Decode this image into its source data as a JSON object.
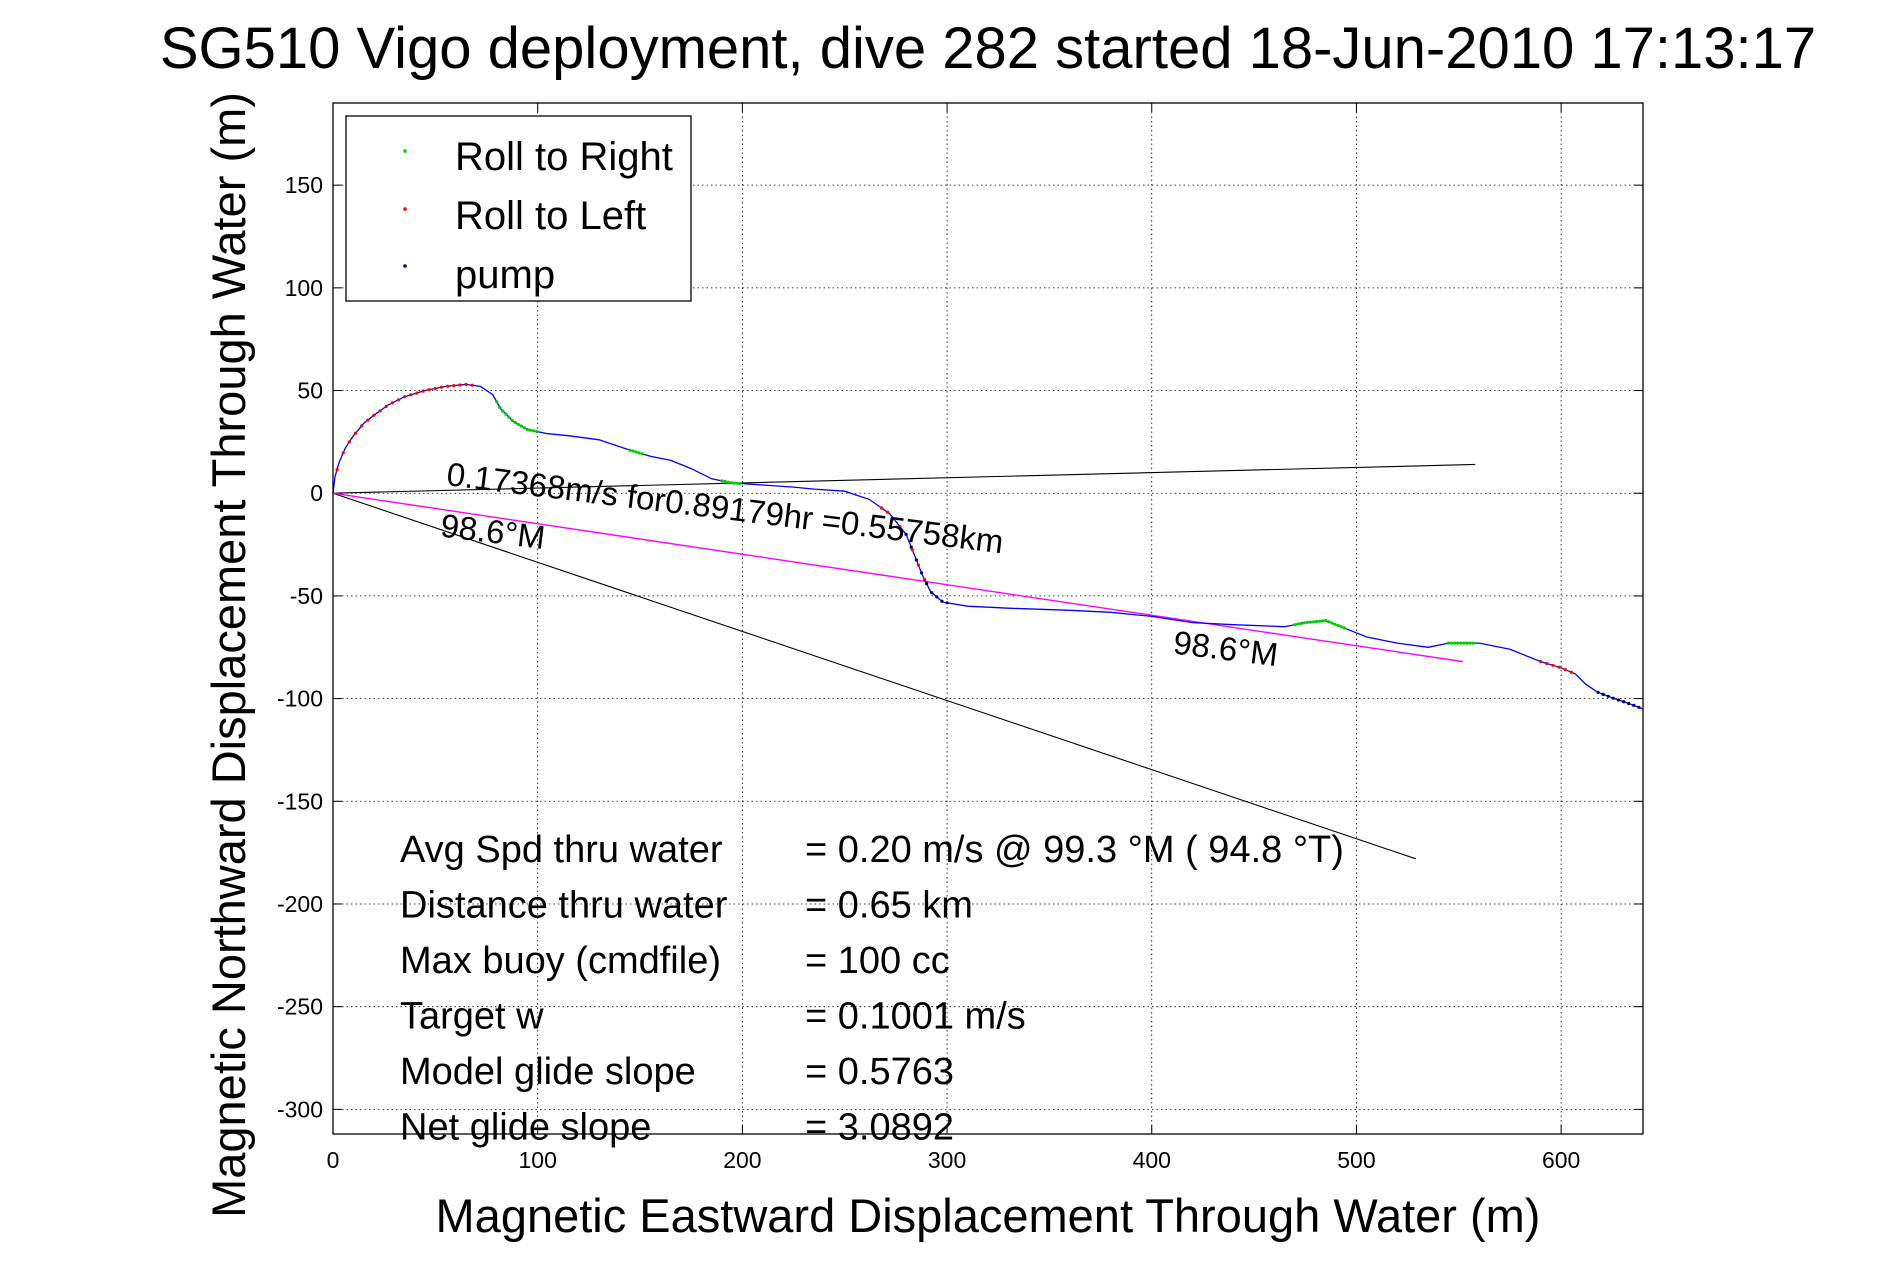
{
  "chart_data": {
    "type": "scatter",
    "title": "SG510 Vigo deployment, dive 282 started 18-Jun-2010 17:13:17",
    "xlabel": "Magnetic Eastward Displacement Through Water (m)",
    "ylabel": "Magnetic Northward Displacement Through Water (m)",
    "xlim": [
      0,
      640
    ],
    "ylim": [
      -312,
      190
    ],
    "x_ticks": [
      0,
      100,
      200,
      300,
      400,
      500,
      600
    ],
    "y_ticks": [
      -300,
      -250,
      -200,
      -150,
      -100,
      -50,
      0,
      50,
      100,
      150
    ],
    "x_tick_labels": [
      "0",
      "100",
      "200",
      "300",
      "400",
      "500",
      "600"
    ],
    "y_tick_labels": [
      "-300",
      "-250",
      "-200",
      "-150",
      "-100",
      "-50",
      "0",
      "50",
      "100",
      "150"
    ],
    "grid": true,
    "legend_position": "top-left",
    "legend": [
      {
        "label": "Roll to Right",
        "color": "#00cc00"
      },
      {
        "label": "Roll to Left",
        "color": "#ff0000"
      },
      {
        "label": "pump",
        "color": "#000066"
      }
    ],
    "track": {
      "color": "#0000ff",
      "points": [
        [
          0,
          0
        ],
        [
          1,
          8
        ],
        [
          3,
          15
        ],
        [
          6,
          22
        ],
        [
          10,
          28
        ],
        [
          15,
          34
        ],
        [
          20,
          38
        ],
        [
          27,
          43
        ],
        [
          35,
          47
        ],
        [
          45,
          50
        ],
        [
          55,
          52
        ],
        [
          65,
          53
        ],
        [
          72,
          52
        ],
        [
          78,
          48
        ],
        [
          82,
          41
        ],
        [
          88,
          35
        ],
        [
          95,
          31
        ],
        [
          105,
          29
        ],
        [
          115,
          28
        ],
        [
          130,
          26
        ],
        [
          145,
          21
        ],
        [
          155,
          18
        ],
        [
          165,
          16
        ],
        [
          175,
          12
        ],
        [
          185,
          7
        ],
        [
          195,
          5
        ],
        [
          210,
          4
        ],
        [
          225,
          3
        ],
        [
          235,
          2
        ],
        [
          250,
          1
        ],
        [
          262,
          -3
        ],
        [
          272,
          -10
        ],
        [
          280,
          -20
        ],
        [
          284,
          -30
        ],
        [
          288,
          -40
        ],
        [
          292,
          -48
        ],
        [
          298,
          -53
        ],
        [
          310,
          -55
        ],
        [
          330,
          -56
        ],
        [
          360,
          -57
        ],
        [
          380,
          -58
        ],
        [
          400,
          -60
        ],
        [
          420,
          -63
        ],
        [
          440,
          -64
        ],
        [
          465,
          -65
        ],
        [
          475,
          -63
        ],
        [
          485,
          -62
        ],
        [
          495,
          -66
        ],
        [
          505,
          -70
        ],
        [
          520,
          -73
        ],
        [
          535,
          -75
        ],
        [
          545,
          -73
        ],
        [
          560,
          -73
        ],
        [
          575,
          -76
        ],
        [
          590,
          -82
        ],
        [
          600,
          -85
        ],
        [
          607,
          -88
        ],
        [
          612,
          -93
        ],
        [
          618,
          -97
        ],
        [
          626,
          -100
        ],
        [
          632,
          -102
        ],
        [
          640,
          -105
        ]
      ]
    },
    "roll_right_segments": [
      [
        80,
        100
      ],
      [
        145,
        152
      ],
      [
        190,
        200
      ],
      [
        470,
        495
      ],
      [
        545,
        558
      ]
    ],
    "roll_left_segments": [
      [
        2,
        70
      ],
      [
        268,
        290
      ],
      [
        590,
        605
      ]
    ],
    "pump_segments": [
      [
        280,
        300
      ],
      [
        618,
        640
      ]
    ],
    "lines": [
      {
        "name": "heading",
        "color": "#000000",
        "x": [
          0,
          558
        ],
        "y": [
          0,
          14
        ]
      },
      {
        "name": "heading",
        "color": "#000000",
        "x": [
          0,
          529
        ],
        "y": [
          0,
          -178
        ]
      },
      {
        "name": "avg-track",
        "color": "#ff00ff",
        "x": [
          0,
          552
        ],
        "y": [
          0,
          -82
        ]
      }
    ],
    "annotations": [
      {
        "text": "0.17368m/s for0.89179hr =0.55758km",
        "x": 55,
        "y": 4,
        "rotate": 7
      },
      {
        "text": "98.6°M",
        "x": 52,
        "y": -21,
        "rotate": 7
      },
      {
        "text": "98.6°M",
        "x": 410,
        "y": -78,
        "rotate": 7
      }
    ],
    "stats": [
      {
        "label": "Avg Spd thru water",
        "value": "=  0.20 m/s @  99.3 °M ( 94.8 °T)"
      },
      {
        "label": "Distance thru water",
        "value": "=  0.65 km"
      },
      {
        "label": "Max buoy (cmdfile)",
        "value": "= 100 cc"
      },
      {
        "label": "Target w",
        "value": "= 0.1001 m/s"
      },
      {
        "label": "Model glide slope",
        "value": "= 0.5763"
      },
      {
        "label": "Net glide slope",
        "value": "= 3.0892"
      }
    ]
  }
}
